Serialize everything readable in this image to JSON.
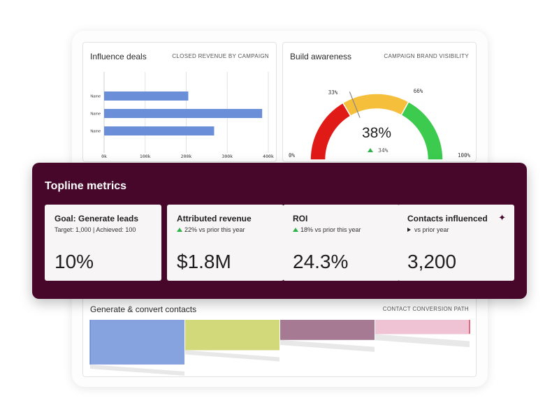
{
  "influence": {
    "title": "Influence deals",
    "subtitle": "CLOSED REVENUE BY CAMPAIGN",
    "chart_data": {
      "type": "bar",
      "orientation": "horizontal",
      "categories": [
        "Name",
        "Name",
        "Name"
      ],
      "values": [
        205000,
        385000,
        268000
      ],
      "xlim": [
        0,
        400000
      ],
      "tick_labels": [
        "0k",
        "100k",
        "200k",
        "300k",
        "400k"
      ],
      "ticks": [
        0,
        100000,
        200000,
        300000,
        400000
      ],
      "grid": true,
      "bar_color": "#6a8fd8"
    }
  },
  "awareness": {
    "title": "Build awareness",
    "subtitle": "CAMPAIGN BRAND VISIBILITY",
    "chart_data": {
      "type": "gauge",
      "value": 38,
      "value_label": "38%",
      "delta_label": "34%",
      "range": [
        0,
        100
      ],
      "min_label": "0%",
      "max_label": "100%",
      "band_labels": [
        "33%",
        "66%"
      ],
      "bands": [
        {
          "from": 0,
          "to": 33,
          "color": "#e01b17"
        },
        {
          "from": 33,
          "to": 66,
          "color": "#f6bf3b"
        },
        {
          "from": 66,
          "to": 100,
          "color": "#3ccb4f"
        }
      ]
    }
  },
  "topline": {
    "title": "Topline metrics",
    "metrics": [
      {
        "label": "Goal: Generate leads",
        "sub": "Target: 1,000 | Achieved: 100",
        "value": "10%"
      },
      {
        "label": "Attributed revenue",
        "sub": "22% vs prior this year",
        "value": "$1.8M"
      },
      {
        "label": "ROI",
        "sub": "18% vs prior this year",
        "value": "24.3%"
      },
      {
        "label": "Contacts influenced",
        "sub": "vs prior year",
        "value": "3,200"
      }
    ]
  },
  "convert": {
    "title": "Generate & convert contacts",
    "subtitle": "CONTACT CONVERSION PATH",
    "chart_data": {
      "type": "funnel",
      "stages": [
        {
          "value": 100,
          "color": "#86a3e0"
        },
        {
          "value": 68,
          "color": "#d1d97a"
        },
        {
          "value": 45,
          "color": "#a67a93"
        },
        {
          "value": 32,
          "color": "#efc3d4"
        }
      ]
    }
  }
}
